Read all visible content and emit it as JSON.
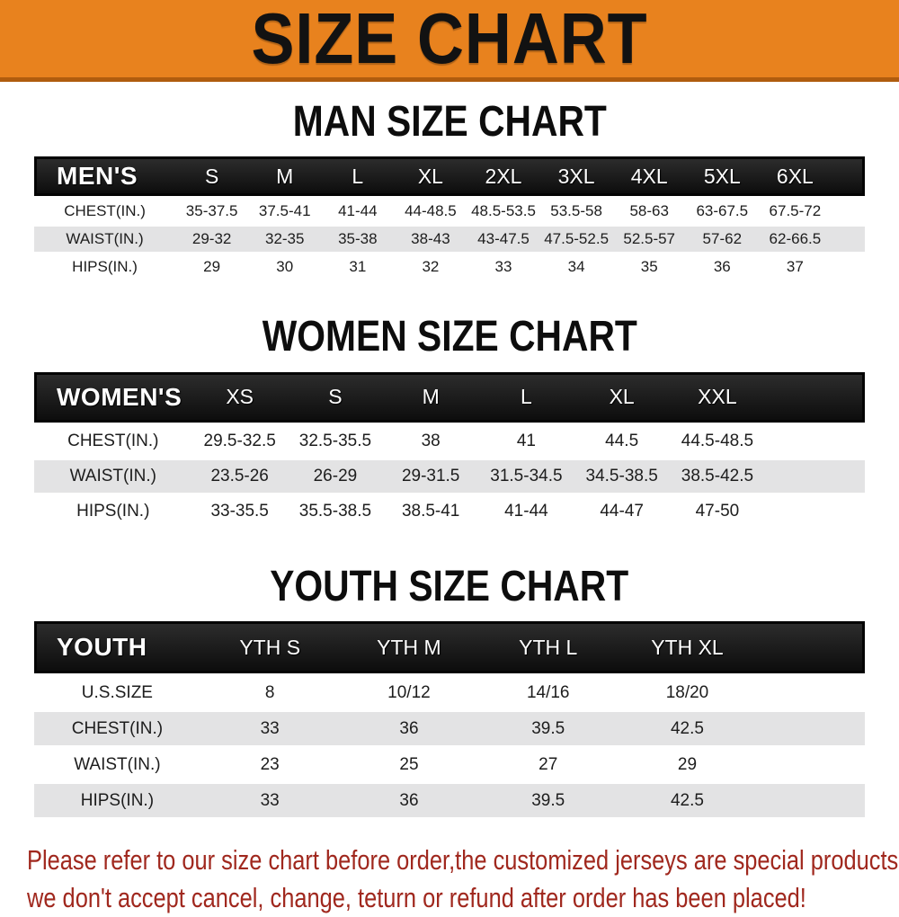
{
  "banner": {
    "title": "SIZE CHART"
  },
  "sections": [
    {
      "heading": "MAN SIZE CHART",
      "header_label": "MEN'S",
      "columns": [
        "S",
        "M",
        "L",
        "XL",
        "2XL",
        "3XL",
        "4XL",
        "5XL",
        "6XL"
      ],
      "rows": [
        {
          "label": "CHEST(IN.)",
          "values": [
            "35-37.5",
            "37.5-41",
            "41-44",
            "44-48.5",
            "48.5-53.5",
            "53.5-58",
            "58-63",
            "63-67.5",
            "67.5-72"
          ]
        },
        {
          "label": "WAIST(IN.)",
          "values": [
            "29-32",
            "32-35",
            "35-38",
            "38-43",
            "43-47.5",
            "47.5-52.5",
            "52.5-57",
            "57-62",
            "62-66.5"
          ]
        },
        {
          "label": "HIPS(IN.)",
          "values": [
            "29",
            "30",
            "31",
            "32",
            "33",
            "34",
            "35",
            "36",
            "37"
          ]
        }
      ]
    },
    {
      "heading": "WOMEN SIZE CHART",
      "header_label": "WOMEN'S",
      "columns": [
        "XS",
        "S",
        "M",
        "L",
        "XL",
        "XXL"
      ],
      "rows": [
        {
          "label": "CHEST(IN.)",
          "values": [
            "29.5-32.5",
            "32.5-35.5",
            "38",
            "41",
            "44.5",
            "44.5-48.5"
          ]
        },
        {
          "label": "WAIST(IN.)",
          "values": [
            "23.5-26",
            "26-29",
            "29-31.5",
            "31.5-34.5",
            "34.5-38.5",
            "38.5-42.5"
          ]
        },
        {
          "label": "HIPS(IN.)",
          "values": [
            "33-35.5",
            "35.5-38.5",
            "38.5-41",
            "41-44",
            "44-47",
            "47-50"
          ]
        }
      ]
    },
    {
      "heading": "YOUTH SIZE CHART",
      "header_label": "YOUTH",
      "columns": [
        "YTH S",
        "YTH M",
        "YTH L",
        "YTH XL"
      ],
      "rows": [
        {
          "label": "U.S.SIZE",
          "values": [
            "8",
            "10/12",
            "14/16",
            "18/20"
          ]
        },
        {
          "label": "CHEST(IN.)",
          "values": [
            "33",
            "36",
            "39.5",
            "42.5"
          ]
        },
        {
          "label": "WAIST(IN.)",
          "values": [
            "23",
            "25",
            "27",
            "29"
          ]
        },
        {
          "label": "HIPS(IN.)",
          "values": [
            "33",
            "36",
            "39.5",
            "42.5"
          ]
        }
      ]
    }
  ],
  "footer": {
    "line1": "Please refer to our size chart before order,the customized jerseys are special products,",
    "line2": "we don't accept cancel, change, teturn or refund after order has been placed!"
  },
  "colors": {
    "banner_orange": "#e8821e",
    "banner_border": "#b05c0e",
    "header_black": "#161616",
    "row_gray": "#e3e3e4",
    "footer_red": "#a0281e"
  }
}
